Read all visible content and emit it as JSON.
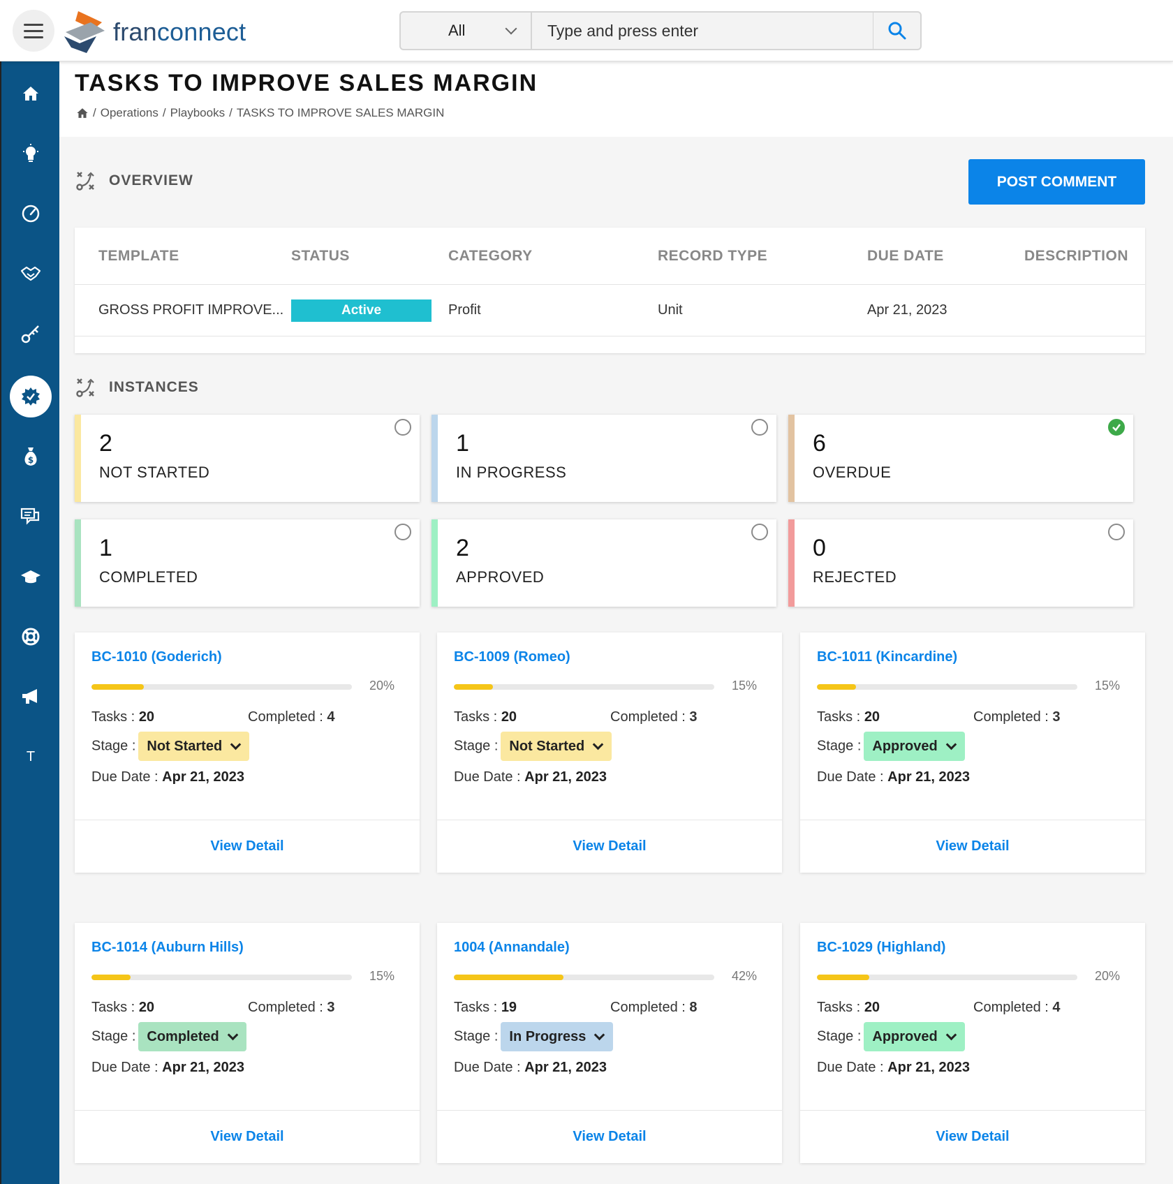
{
  "header": {
    "logo_text_a": "fran",
    "logo_text_b": "connect",
    "search_scope": "All",
    "search_placeholder": "Type and press enter"
  },
  "sidebar": {
    "items": [
      {
        "icon": "home-icon"
      },
      {
        "icon": "lightbulb-icon"
      },
      {
        "icon": "speedometer-icon"
      },
      {
        "icon": "handshake-icon"
      },
      {
        "icon": "key-icon"
      },
      {
        "icon": "gear-badge-icon",
        "active": true
      },
      {
        "icon": "money-bag-icon"
      },
      {
        "icon": "chat-icon"
      },
      {
        "icon": "graduation-cap-icon"
      },
      {
        "icon": "lifebuoy-icon"
      },
      {
        "icon": "megaphone-icon"
      },
      {
        "icon": "text-t-icon",
        "label": "T"
      }
    ]
  },
  "page": {
    "title": "TASKS TO IMPROVE SALES MARGIN",
    "breadcrumb": [
      "Operations",
      "Playbooks",
      "TASKS TO IMPROVE SALES MARGIN"
    ],
    "separator": "/"
  },
  "overview": {
    "title": "OVERVIEW",
    "post_comment": "POST COMMENT",
    "columns": [
      "TEMPLATE",
      "STATUS",
      "CATEGORY",
      "RECORD TYPE",
      "DUE DATE",
      "DESCRIPTION"
    ],
    "row": {
      "template": "GROSS PROFIT IMPROVE...",
      "status": "Active",
      "category": "Profit",
      "record_type": "Unit",
      "due_date": "Apr 21, 2023",
      "description": ""
    },
    "colors": {
      "status_active": "#1fbfd0",
      "primary": "#0b84e8"
    }
  },
  "instances": {
    "title": "INSTANCES",
    "tiles": [
      {
        "count": "2",
        "label": "NOT STARTED",
        "color": "#fbe8a0",
        "checked": false
      },
      {
        "count": "1",
        "label": "IN PROGRESS",
        "color": "#bcd6ec",
        "checked": false
      },
      {
        "count": "6",
        "label": "OVERDUE",
        "color": "#e2c3a1",
        "checked": true
      },
      {
        "count": "1",
        "label": "COMPLETED",
        "color": "#a9e3c0",
        "checked": false
      },
      {
        "count": "2",
        "label": "APPROVED",
        "color": "#9ef0c4",
        "checked": false
      },
      {
        "count": "0",
        "label": "REJECTED",
        "color": "#f29b9b",
        "checked": false
      }
    ],
    "labels": {
      "tasks": "Tasks :",
      "completed": "Completed :",
      "stage": "Stage :",
      "due_date": "Due Date :",
      "view_detail": "View Detail"
    },
    "cards": [
      {
        "name": "BC-1010 (Goderich)",
        "progress": 20,
        "progress_text": "20%",
        "tasks": "20",
        "completed": "4",
        "stage": "Not Started",
        "stage_color": "#fbe8a0",
        "due": "Apr 21, 2023"
      },
      {
        "name": "BC-1009 (Romeo)",
        "progress": 15,
        "progress_text": "15%",
        "tasks": "20",
        "completed": "3",
        "stage": "Not Started",
        "stage_color": "#fbe8a0",
        "due": "Apr 21, 2023"
      },
      {
        "name": "BC-1011 (Kincardine)",
        "progress": 15,
        "progress_text": "15%",
        "tasks": "20",
        "completed": "3",
        "stage": "Approved",
        "stage_color": "#9ef0c4",
        "due": "Apr 21, 2023"
      },
      {
        "name": "BC-1014 (Auburn Hills)",
        "progress": 15,
        "progress_text": "15%",
        "tasks": "20",
        "completed": "3",
        "stage": "Completed",
        "stage_color": "#a9e3c0",
        "due": "Apr 21, 2023"
      },
      {
        "name": "1004 (Annandale)",
        "progress": 42,
        "progress_text": "42%",
        "tasks": "19",
        "completed": "8",
        "stage": "In Progress",
        "stage_color": "#bcd6ec",
        "due": "Apr 21, 2023"
      },
      {
        "name": "BC-1029 (Highland)",
        "progress": 20,
        "progress_text": "20%",
        "tasks": "20",
        "completed": "4",
        "stage": "Approved",
        "stage_color": "#9ef0c4",
        "due": "Apr 21, 2023"
      }
    ]
  }
}
